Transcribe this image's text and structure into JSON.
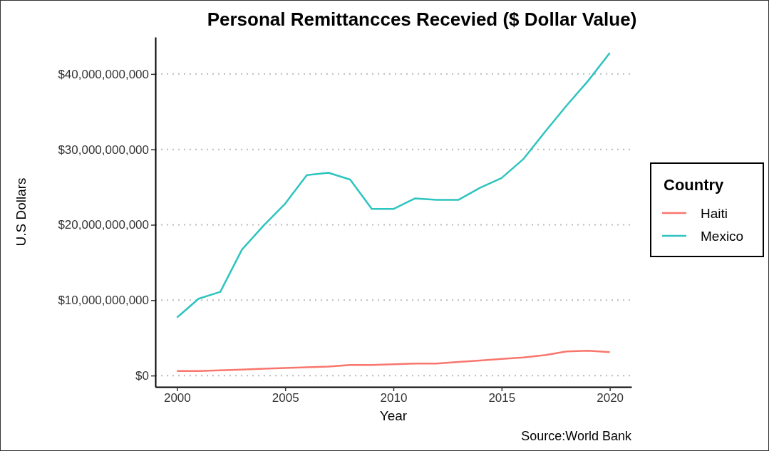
{
  "chart_data": {
    "type": "line",
    "title": "Personal Remittancces Recevied ($ Dollar Value)",
    "xlabel": "Year",
    "ylabel": "U.S Dollars",
    "legend_title": "Country",
    "annotations": [
      "Source:World Bank"
    ],
    "x": [
      2000,
      2001,
      2002,
      2003,
      2004,
      2005,
      2006,
      2007,
      2008,
      2009,
      2010,
      2011,
      2012,
      2013,
      2014,
      2015,
      2016,
      2017,
      2018,
      2019,
      2020
    ],
    "series": [
      {
        "name": "Haiti",
        "color": "#f8766d",
        "values": [
          600000000,
          600000000,
          700000000,
          800000000,
          900000000,
          1000000000,
          1100000000,
          1200000000,
          1400000000,
          1400000000,
          1500000000,
          1600000000,
          1600000000,
          1800000000,
          2000000000,
          2200000000,
          2400000000,
          2700000000,
          3200000000,
          3300000000,
          3100000000
        ]
      },
      {
        "name": "Mexico",
        "color": "#2ec4c0",
        "values": [
          7700000000,
          10200000000,
          11100000000,
          16700000000,
          19900000000,
          22800000000,
          26600000000,
          26900000000,
          26000000000,
          22100000000,
          22100000000,
          23500000000,
          23300000000,
          23300000000,
          24900000000,
          26200000000,
          28700000000,
          32300000000,
          35800000000,
          39100000000,
          42800000000
        ]
      }
    ],
    "xlim": [
      1999,
      2021
    ],
    "xticks": [
      2000,
      2005,
      2010,
      2015,
      2020
    ],
    "ylim": [
      -1500000000,
      44900000000
    ],
    "yticks": [
      {
        "value": 0,
        "label": "$0"
      },
      {
        "value": 10000000000,
        "label": "$10,000,000,000"
      },
      {
        "value": 20000000000,
        "label": "$20,000,000,000"
      },
      {
        "value": 30000000000,
        "label": "$30,000,000,000"
      },
      {
        "value": 40000000000,
        "label": "$40,000,000,000"
      }
    ],
    "grid": "y",
    "legend": "right",
    "line_style": "solid"
  }
}
